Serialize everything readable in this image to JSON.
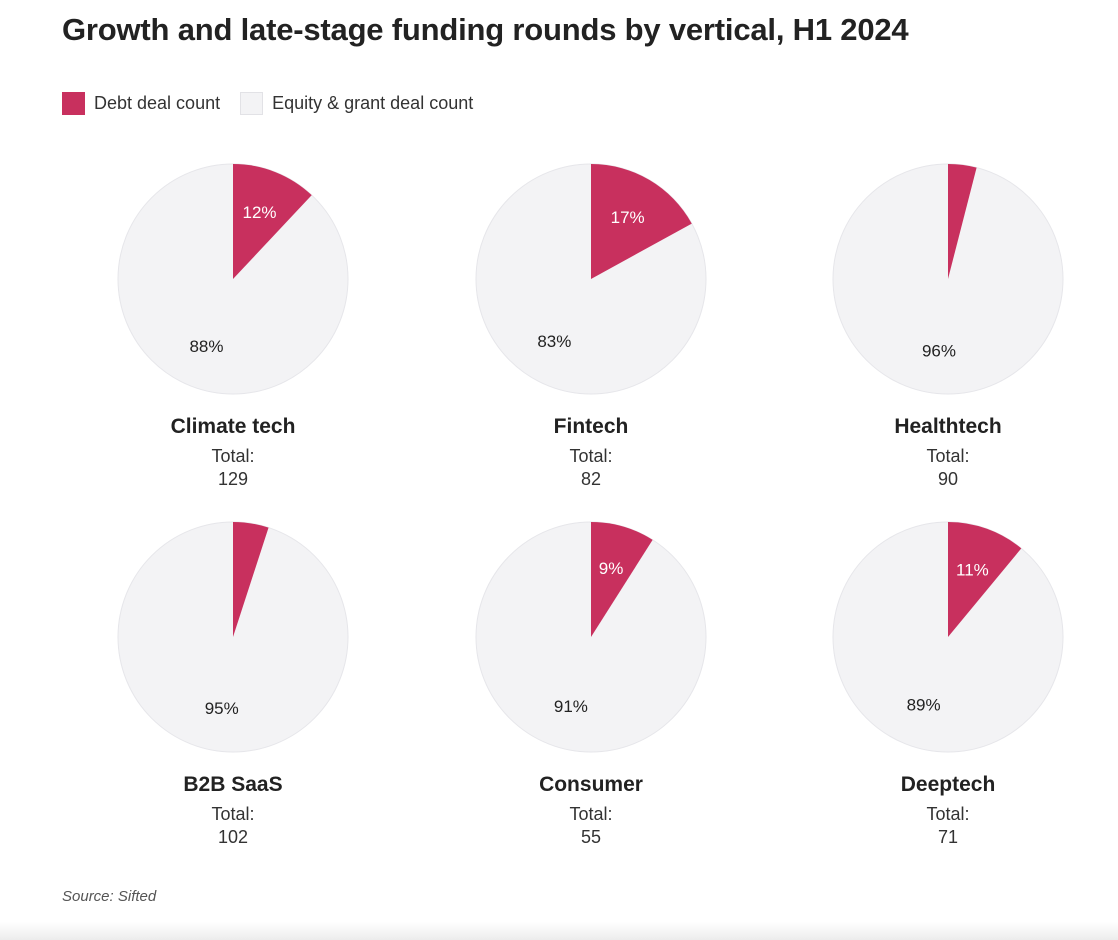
{
  "chart_data": {
    "type": "pie",
    "title": "Growth and late-stage funding rounds by vertical, H1 2024",
    "legend": {
      "placement": "top-left",
      "entries": [
        {
          "name": "Debt deal count",
          "color": "#c8305e"
        },
        {
          "name": "Equity & grant deal count",
          "color": "#f3f3f5"
        }
      ]
    },
    "total_label": "Total:",
    "pies": [
      {
        "name": "Climate tech",
        "total": 129,
        "debt_pct": 12,
        "equity_pct": 88,
        "debt_label": "12%",
        "equity_label": "88%"
      },
      {
        "name": "Fintech",
        "total": 82,
        "debt_pct": 17,
        "equity_pct": 83,
        "debt_label": "17%",
        "equity_label": "83%"
      },
      {
        "name": "Healthtech",
        "total": 90,
        "debt_pct": 4,
        "equity_pct": 96,
        "debt_label": "",
        "equity_label": "96%"
      },
      {
        "name": "B2B SaaS",
        "total": 102,
        "debt_pct": 5,
        "equity_pct": 95,
        "debt_label": "",
        "equity_label": "95%"
      },
      {
        "name": "Consumer",
        "total": 55,
        "debt_pct": 9,
        "equity_pct": 91,
        "debt_label": "9%",
        "equity_label": "91%"
      },
      {
        "name": "Deeptech",
        "total": 71,
        "debt_pct": 11,
        "equity_pct": 89,
        "debt_label": "11%",
        "equity_label": "89%"
      }
    ],
    "source": "Source: Sifted"
  }
}
